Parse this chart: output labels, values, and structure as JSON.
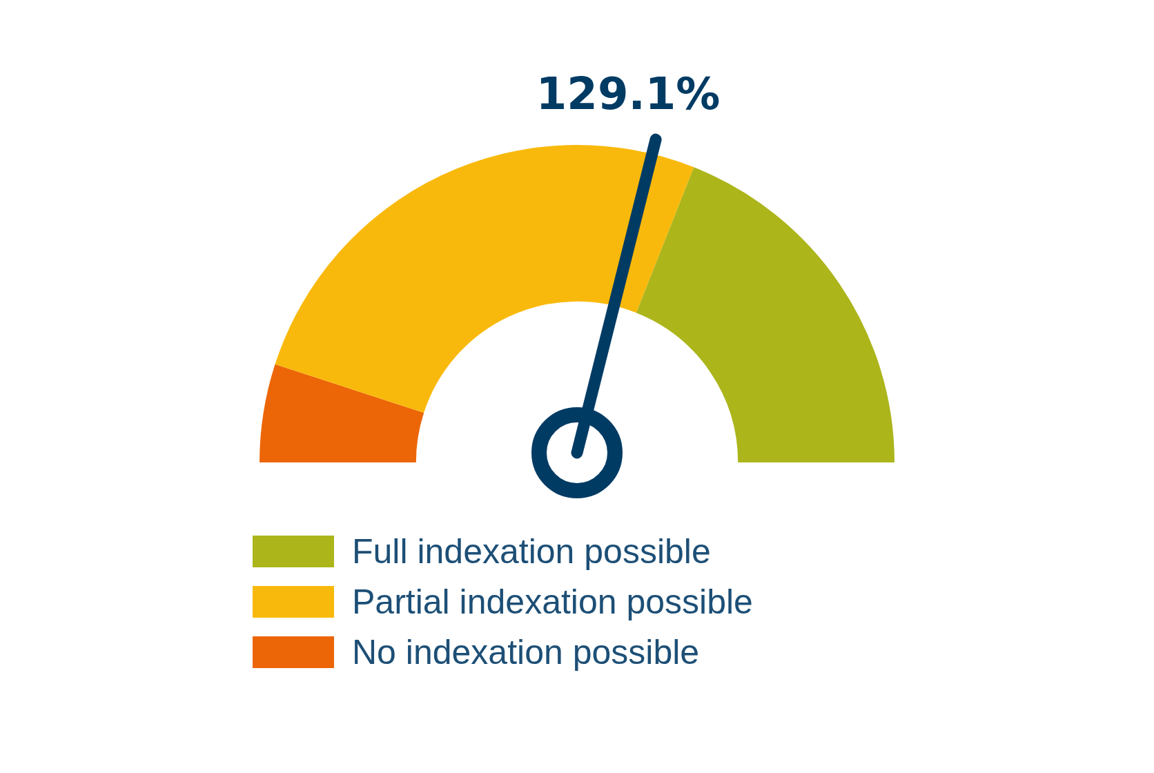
{
  "chart_data": {
    "type": "donut",
    "categories": [
      "No indexation possible",
      "Partial indexation possible",
      "Full indexation possible"
    ],
    "values": [
      10,
      52,
      38
    ],
    "colors": [
      "#ec6608",
      "#f9b90c",
      "#acb51a"
    ],
    "needle": "Partial indexation possible",
    "annotations": [
      "129.1%"
    ],
    "legend": "bottom"
  }
}
